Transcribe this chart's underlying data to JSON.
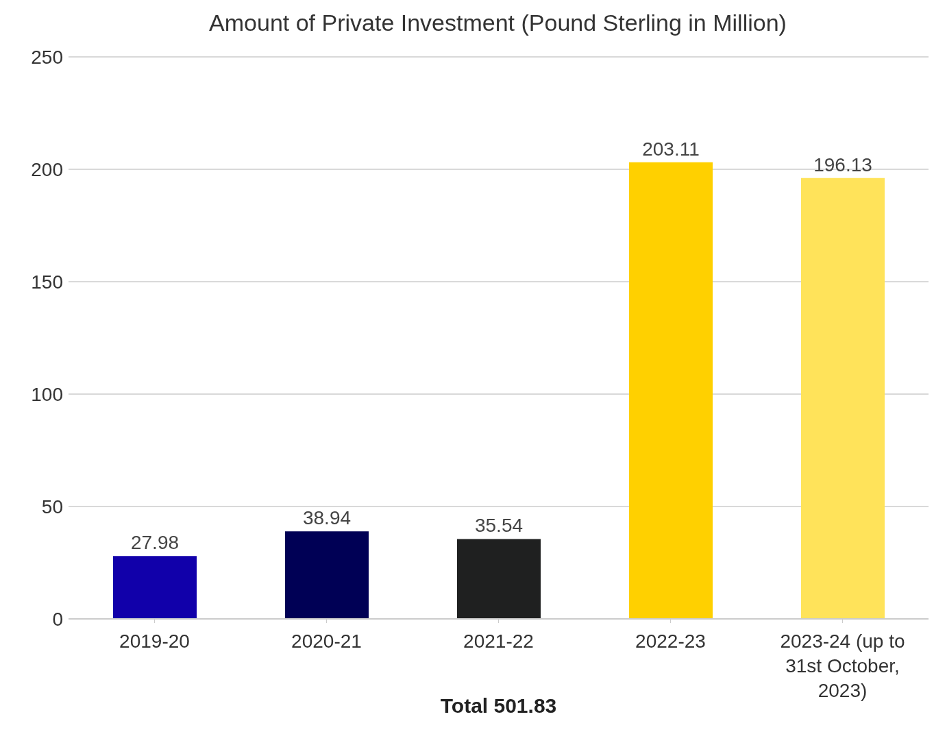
{
  "chart_data": {
    "type": "bar",
    "title": "Amount of Private Investment (Pound Sterling in Million)",
    "categories": [
      "2019-20",
      "2020-21",
      "2021-22",
      "2022-23",
      "2023-24 (up to 31st October, 2023)"
    ],
    "values": [
      27.98,
      38.94,
      35.54,
      203.11,
      196.13
    ],
    "colors": [
      "#1100aa",
      "#000055",
      "#1f2020",
      "#ffd000",
      "#ffe35a"
    ],
    "ylim": [
      0,
      250
    ],
    "yticks": [
      0,
      50,
      100,
      150,
      200,
      250
    ],
    "grid": "y",
    "data_labels": true,
    "annotations": [
      "Total 501.83"
    ]
  }
}
